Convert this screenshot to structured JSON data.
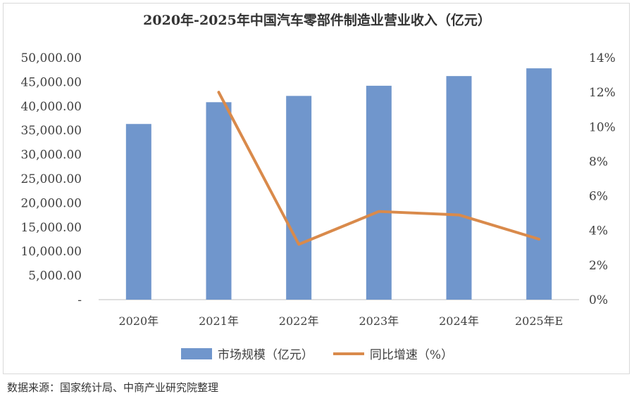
{
  "chart_data": {
    "type": "bar+line",
    "title": "2020年-2025年中国汽车零部件制造业营业收入（亿元）",
    "categories": [
      "2020年",
      "2021年",
      "2022年",
      "2023年",
      "2024年",
      "2025年E"
    ],
    "series": [
      {
        "name": "市场规模（亿元）",
        "type": "bar",
        "axis": "left",
        "values": [
          36300,
          40800,
          42100,
          44200,
          46200,
          47800
        ],
        "color": "#7096cc"
      },
      {
        "name": "同比增速（%）",
        "type": "line",
        "axis": "right",
        "values": [
          null,
          12.0,
          3.2,
          5.1,
          4.9,
          3.5
        ],
        "color": "#d98a4b"
      }
    ],
    "y_left": {
      "min": 0,
      "max": 50000,
      "step": 5000,
      "tick_labels": [
        "-",
        "5,000.00",
        "10,000.00",
        "15,000.00",
        "20,000.00",
        "25,000.00",
        "30,000.00",
        "35,000.00",
        "40,000.00",
        "45,000.00",
        "50,000.00"
      ]
    },
    "y_right": {
      "min": 0,
      "max": 14,
      "step": 2,
      "tick_labels": [
        "0%",
        "2%",
        "4%",
        "6%",
        "8%",
        "10%",
        "12%",
        "14%"
      ]
    },
    "grid": false,
    "legend_position": "bottom"
  },
  "source": "数据来源：国家统计局、中商产业研究院整理"
}
